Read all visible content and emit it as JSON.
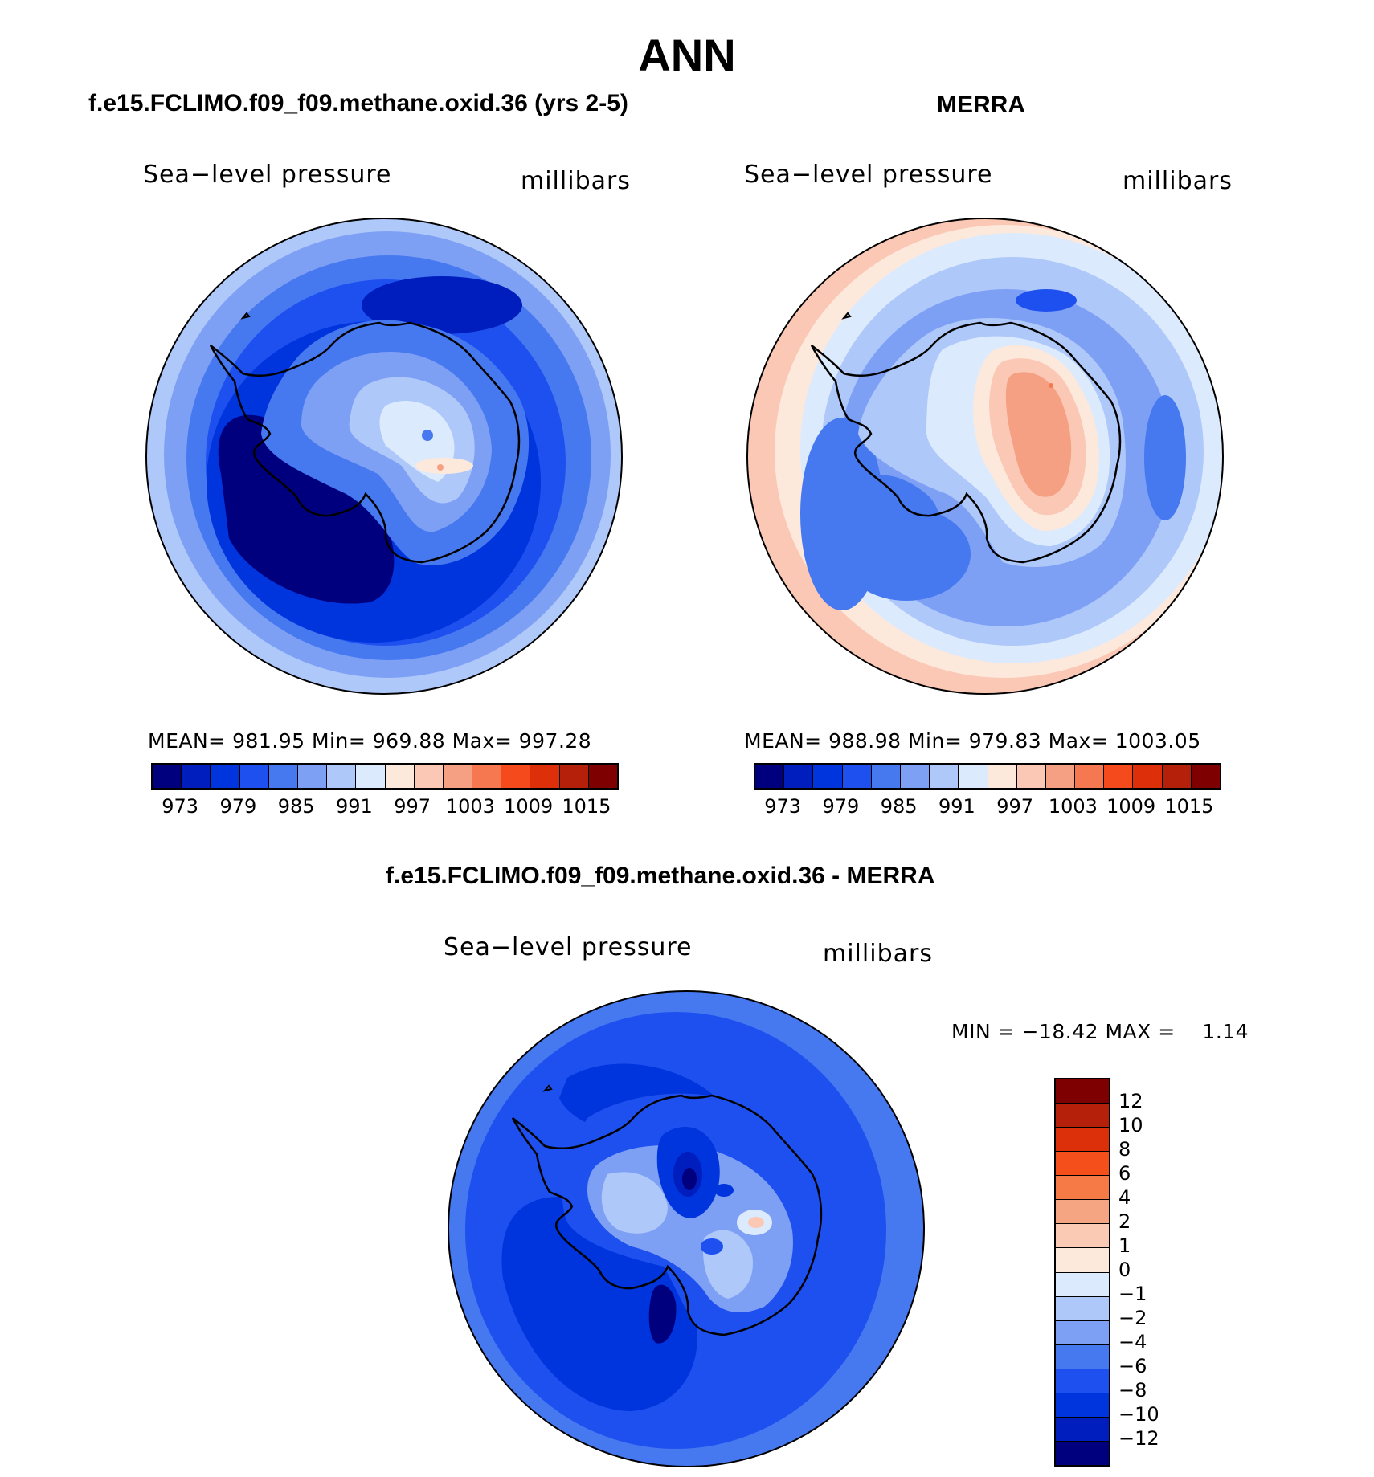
{
  "main_title": "ANN",
  "panels": {
    "model": {
      "title": "f.e15.FCLIMO.f09_f09.methane.oxid.36 (yrs 2-5)",
      "variable": "Sea−level pressure",
      "units": "millibars",
      "stats": "MEAN= 981.95   Min= 969.88   Max= 997.28"
    },
    "obs": {
      "title": "MERRA",
      "variable": "Sea−level pressure",
      "units": "millibars",
      "stats": "MEAN= 988.98   Min= 979.83   Max= 1003.05"
    },
    "diff": {
      "title": "f.e15.FCLIMO.f09_f09.methane.oxid.36 - MERRA",
      "variable": "Sea−level pressure",
      "units": "millibars",
      "stats": "MIN = −18.42 MAX =    1.14"
    }
  },
  "colorbars": {
    "field": {
      "colors": [
        "#00007f",
        "#001ebe",
        "#0034dc",
        "#1e50f0",
        "#4678f0",
        "#7da0f5",
        "#afc8fa",
        "#dceafd",
        "#fde8dc",
        "#fac8b4",
        "#f5a082",
        "#f57850",
        "#f54a1c",
        "#dc2f0a",
        "#b4200a",
        "#7f0000"
      ],
      "ticks": [
        "973",
        "979",
        "985",
        "991",
        "997",
        "1003",
        "1009",
        "1015"
      ]
    },
    "diff": {
      "colors": [
        "#7f0000",
        "#b4200a",
        "#dc300a",
        "#f5501c",
        "#f57a46",
        "#f5a582",
        "#facab4",
        "#fde9dc",
        "#dceafd",
        "#afc8fa",
        "#7da0f5",
        "#4678f0",
        "#1e50f0",
        "#0034dc",
        "#001ebe",
        "#00007f"
      ],
      "ticks": [
        "12",
        "10",
        "8",
        "6",
        "4",
        "2",
        "1",
        "0",
        "−1",
        "−2",
        "−4",
        "−6",
        "−8",
        "−10",
        "−12"
      ]
    }
  },
  "map_colors": {
    "model": [
      "#afc8fa",
      "#7da0f5",
      "#4678f0",
      "#1e50f0",
      "#0034dc",
      "#001ebe",
      "#00007f"
    ],
    "obs": [
      "#fac8b4",
      "#fde8dc",
      "#dceafd",
      "#afc8fa",
      "#7da0f5",
      "#4678f0",
      "#1e50f0",
      "#f5a082"
    ],
    "diff": [
      "#4678f0",
      "#1e50f0",
      "#0034dc",
      "#001ebe",
      "#00007f",
      "#7da0f5",
      "#afc8fa",
      "#fac8b4"
    ]
  }
}
